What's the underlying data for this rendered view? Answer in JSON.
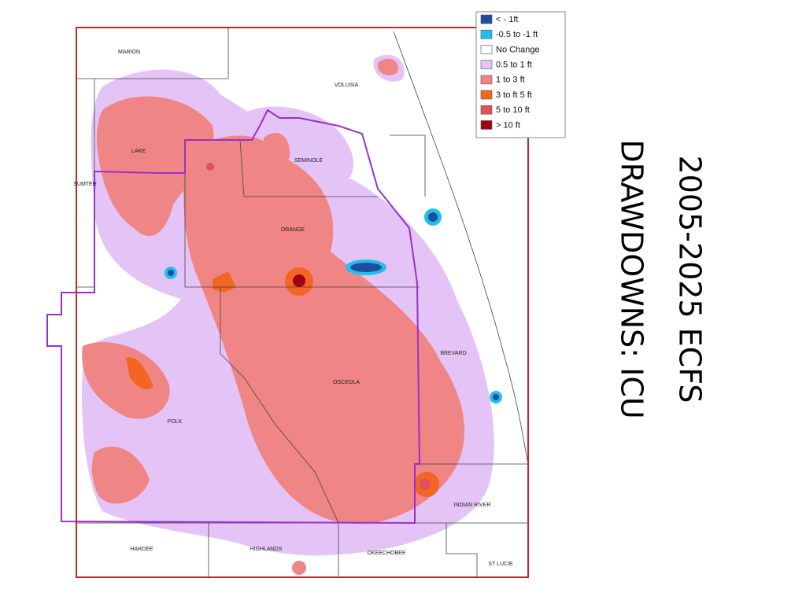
{
  "title": {
    "line1": "2005-2025 ECFS",
    "line2": "DRAWDOWNS: ICU"
  },
  "legend": [
    {
      "label": "< - 1ft",
      "color": "#1f4e9c"
    },
    {
      "label": "-0.5 to -1 ft",
      "color": "#1fc0ef"
    },
    {
      "label": "No Change",
      "color": "#ffffff"
    },
    {
      "label": "0.5 to 1 ft",
      "color": "#e4c4f6"
    },
    {
      "label": "1 to 3 ft",
      "color": "#f08585"
    },
    {
      "label": "3 to ft 5 ft",
      "color": "#f26522"
    },
    {
      "label": "5 to 10 ft",
      "color": "#e0505a"
    },
    {
      "label": "> 10 ft",
      "color": "#a00014"
    }
  ],
  "counties": [
    "MARION",
    "VOLUSIA",
    "LAKE",
    "SEMINOLE",
    "SUMTER",
    "ORANGE",
    "BREVARD",
    "OSCEOLA",
    "POLK",
    "INDIAN RIVER",
    "HARDEE",
    "HIGHLANDS",
    "OKEECHOBEE",
    "ST LUCIE"
  ]
}
